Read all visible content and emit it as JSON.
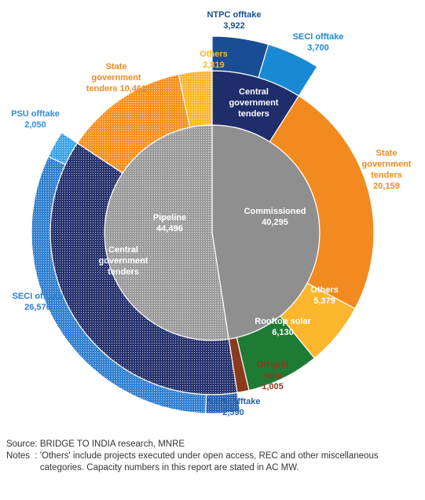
{
  "chart_data": {
    "type": "sunburst",
    "rings": [
      {
        "name": "inner",
        "segments": [
          {
            "label": "Commissioned",
            "value": 40295,
            "value_text": "40,295",
            "color": "#8f8f8f"
          },
          {
            "label": "Pipeline",
            "value": 44496,
            "value_text": "44,496",
            "color": "#9a9a9a"
          }
        ]
      },
      {
        "name": "middle",
        "segments": [
          {
            "label": "Central government tenders",
            "parent": "Commissioned",
            "value": 7622,
            "color": "#1f2d6b"
          },
          {
            "label": "State government tenders",
            "parent": "Commissioned",
            "value": 20159,
            "value_text": "20,159",
            "color": "#f28a1f"
          },
          {
            "label": "Others",
            "parent": "Commissioned",
            "value": 5379,
            "value_text": "5,379",
            "color": "#fbb62d"
          },
          {
            "label": "Rooftop solar",
            "parent": "Commissioned",
            "value": 6130,
            "value_text": "6,130",
            "color": "#1e7b34"
          },
          {
            "label": "Off-grid solar",
            "parent": "Commissioned",
            "value": 1005,
            "value_text": "1,005",
            "color": "#8b3a1e"
          },
          {
            "label": "Central government tenders",
            "parent": "Pipeline",
            "value": 31216,
            "color": "#24306b"
          },
          {
            "label": "State government tenders",
            "parent": "Pipeline",
            "value": 10461,
            "value_text": "10,461",
            "color": "#f5901f"
          },
          {
            "label": "Others",
            "parent": "Pipeline",
            "value": 2819,
            "value_text": "2,819",
            "color": "#fbb62d"
          }
        ]
      },
      {
        "name": "outer",
        "segments": [
          {
            "label": "NTPC offtake",
            "parent": "Central government tenders (Commissioned)",
            "value": 3922,
            "value_text": "3,922",
            "color": "#1a4e94"
          },
          {
            "label": "SECI offtake",
            "parent": "Central government tenders (Commissioned)",
            "value": 3700,
            "value_text": "3,700",
            "color": "#1989d6"
          },
          {
            "label": "NTPC offtake",
            "parent": "Central government tenders (Pipeline)",
            "value": 2590,
            "value_text": "2,590",
            "color": "#2563ac"
          },
          {
            "label": "SECI offtake",
            "parent": "Central government tenders (Pipeline)",
            "value": 26576,
            "value_text": "26,576",
            "color": "#2f7fcf"
          },
          {
            "label": "PSU offtake",
            "parent": "Central government tenders (Pipeline)",
            "value": 2050,
            "value_text": "2,050",
            "color": "#3aa3e6"
          }
        ]
      }
    ],
    "labels": {
      "commissioned": {
        "name": "Commissioned",
        "value": "40,295"
      },
      "pipeline": {
        "name": "Pipeline",
        "value": "44,496"
      },
      "central_comm": [
        "Central",
        "government",
        "tenders"
      ],
      "central_pipe": [
        "Central",
        "government",
        "tenders"
      ],
      "state_comm": [
        "State",
        "government",
        "tenders",
        "20,159"
      ],
      "state_pipe": [
        "State",
        "government",
        "tenders 10,461"
      ],
      "others_comm": [
        "Others",
        "5,379"
      ],
      "others_pipe": [
        "Others",
        "2,819"
      ],
      "rooftop": [
        "Rooftop solar",
        "6,130"
      ],
      "offgrid": [
        "Off-grid",
        "solar",
        "1,005"
      ],
      "ntpc_top": [
        "NTPC offtake",
        "3,922"
      ],
      "seci_top": [
        "SECI offtake",
        "3,700"
      ],
      "psu": [
        "PSU offtake",
        "2,050"
      ],
      "seci_left": [
        "SECI offtake",
        "26,576"
      ],
      "ntpc_bottom": [
        "NTPC offtake",
        "2,590"
      ]
    }
  },
  "notes": {
    "source_label": "Source: ",
    "source_text": "BRIDGE TO INDIA research, MNRE",
    "notes_label": "Notes  : ",
    "notes_text": "'Others' include projects executed under open access, REC and other miscellaneous categories. Capacity numbers in this report are stated in AC MW."
  }
}
